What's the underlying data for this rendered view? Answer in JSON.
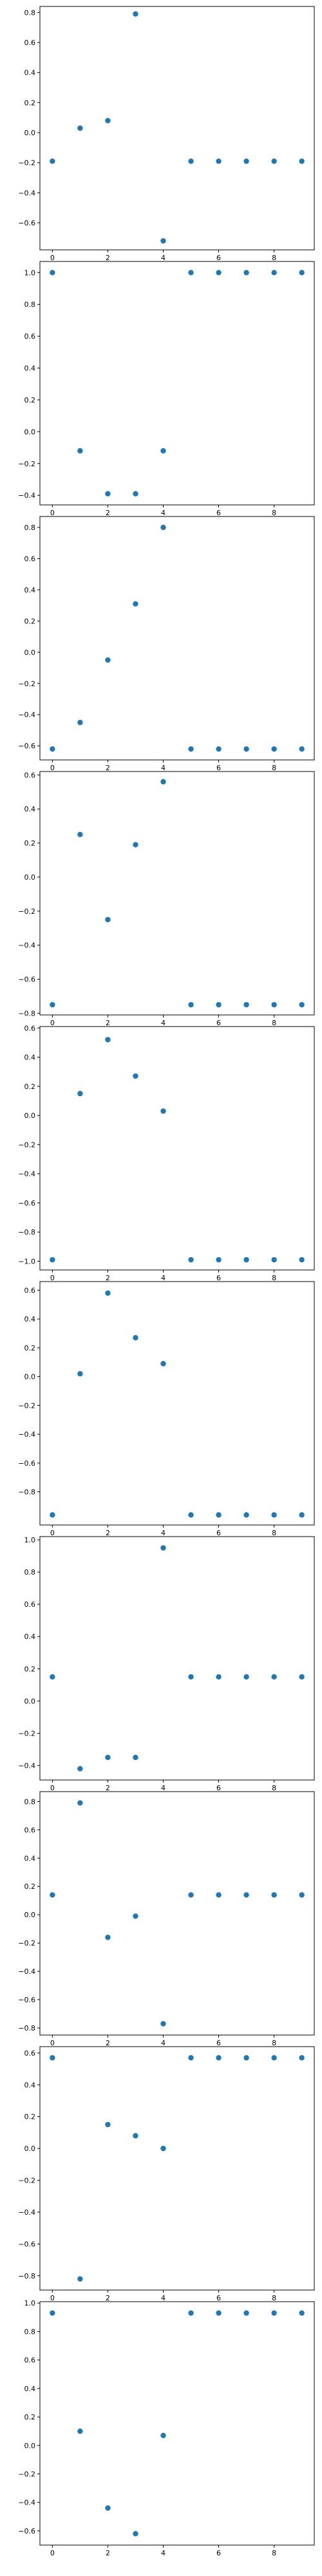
{
  "colors": {
    "marker": "#1f77b4",
    "axes": "#000000",
    "background": "#ffffff"
  },
  "chart_data": [
    {
      "type": "scatter",
      "grid": false,
      "x": [
        0,
        1,
        2,
        3,
        4,
        5,
        6,
        7,
        8,
        9
      ],
      "y": [
        -0.19,
        0.03,
        0.08,
        0.79,
        -0.72,
        -0.19,
        -0.19,
        -0.19,
        -0.19,
        -0.19
      ],
      "ylim": [
        -0.78,
        0.84
      ],
      "xlim": [
        -0.45,
        9.45
      ],
      "yticks": [
        -0.6,
        -0.4,
        -0.2,
        0.0,
        0.2,
        0.4,
        0.6,
        0.8
      ],
      "ytick_labels": [
        "−0.6",
        "−0.4",
        "−0.2",
        "0.0",
        "0.2",
        "0.4",
        "0.6",
        "0.8"
      ],
      "xticks": [
        0,
        2,
        4,
        6,
        8
      ],
      "xtick_labels": [
        "0",
        "2",
        "4",
        "6",
        "8"
      ]
    },
    {
      "type": "scatter",
      "grid": false,
      "x": [
        0,
        1,
        2,
        3,
        4,
        5,
        6,
        7,
        8,
        9
      ],
      "y": [
        1.0,
        -0.12,
        -0.39,
        -0.39,
        -0.12,
        1.0,
        1.0,
        1.0,
        1.0,
        1.0
      ],
      "ylim": [
        -0.46,
        1.07
      ],
      "xlim": [
        -0.45,
        9.45
      ],
      "yticks": [
        -0.4,
        -0.2,
        0.0,
        0.2,
        0.4,
        0.6,
        0.8,
        1.0
      ],
      "ytick_labels": [
        "−0.4",
        "−0.2",
        "0.0",
        "0.2",
        "0.4",
        "0.6",
        "0.8",
        "1.0"
      ],
      "xticks": [
        0,
        2,
        4,
        6,
        8
      ],
      "xtick_labels": [
        "0",
        "2",
        "4",
        "6",
        "8"
      ]
    },
    {
      "type": "scatter",
      "grid": false,
      "x": [
        0,
        1,
        2,
        3,
        4,
        5,
        6,
        7,
        8,
        9
      ],
      "y": [
        -0.62,
        -0.45,
        -0.05,
        0.31,
        0.8,
        -0.62,
        -0.62,
        -0.62,
        -0.62,
        -0.62
      ],
      "ylim": [
        -0.69,
        0.87
      ],
      "xlim": [
        -0.45,
        9.45
      ],
      "yticks": [
        -0.6,
        -0.4,
        -0.2,
        0.0,
        0.2,
        0.4,
        0.6,
        0.8
      ],
      "ytick_labels": [
        "−0.6",
        "−0.4",
        "−0.2",
        "0.0",
        "0.2",
        "0.4",
        "0.6",
        "0.8"
      ],
      "xticks": [
        0,
        2,
        4,
        6,
        8
      ],
      "xtick_labels": [
        "0",
        "2",
        "4",
        "6",
        "8"
      ]
    },
    {
      "type": "scatter",
      "grid": false,
      "x": [
        0,
        1,
        2,
        3,
        4,
        5,
        6,
        7,
        8,
        9
      ],
      "y": [
        -0.75,
        0.25,
        -0.25,
        0.19,
        0.56,
        -0.75,
        -0.75,
        -0.75,
        -0.75,
        -0.75
      ],
      "ylim": [
        -0.81,
        0.62
      ],
      "xlim": [
        -0.45,
        9.45
      ],
      "yticks": [
        -0.8,
        -0.6,
        -0.4,
        -0.2,
        0.0,
        0.2,
        0.4,
        0.6
      ],
      "ytick_labels": [
        "−0.8",
        "−0.6",
        "−0.4",
        "−0.2",
        "0.0",
        "0.2",
        "0.4",
        "0.6"
      ],
      "xticks": [
        0,
        2,
        4,
        6,
        8
      ],
      "xtick_labels": [
        "0",
        "2",
        "4",
        "6",
        "8"
      ]
    },
    {
      "type": "scatter",
      "grid": false,
      "x": [
        0,
        1,
        2,
        3,
        4,
        5,
        6,
        7,
        8,
        9
      ],
      "y": [
        -0.99,
        0.15,
        0.52,
        0.27,
        0.03,
        -0.99,
        -0.99,
        -0.99,
        -0.99,
        -0.99
      ],
      "ylim": [
        -1.06,
        0.61
      ],
      "xlim": [
        -0.45,
        9.45
      ],
      "yticks": [
        -1.0,
        -0.8,
        -0.6,
        -0.4,
        -0.2,
        0.0,
        0.2,
        0.4,
        0.6
      ],
      "ytick_labels": [
        "−1.0",
        "−0.8",
        "−0.6",
        "−0.4",
        "−0.2",
        "0.0",
        "0.2",
        "0.4",
        "0.6"
      ],
      "xticks": [
        0,
        2,
        4,
        6,
        8
      ],
      "xtick_labels": [
        "0",
        "2",
        "4",
        "6",
        "8"
      ]
    },
    {
      "type": "scatter",
      "grid": false,
      "x": [
        0,
        1,
        2,
        3,
        4,
        5,
        6,
        7,
        8,
        9
      ],
      "y": [
        -0.96,
        0.02,
        0.58,
        0.27,
        0.09,
        -0.96,
        -0.96,
        -0.96,
        -0.96,
        -0.96
      ],
      "ylim": [
        -1.03,
        0.66
      ],
      "xlim": [
        -0.45,
        9.45
      ],
      "yticks": [
        -0.8,
        -0.6,
        -0.4,
        -0.2,
        0.0,
        0.2,
        0.4,
        0.6
      ],
      "ytick_labels": [
        "−0.8",
        "−0.6",
        "−0.4",
        "−0.2",
        "0.0",
        "0.2",
        "0.4",
        "0.6"
      ],
      "xticks": [
        0,
        2,
        4,
        6,
        8
      ],
      "xtick_labels": [
        "0",
        "2",
        "4",
        "6",
        "8"
      ]
    },
    {
      "type": "scatter",
      "grid": false,
      "x": [
        0,
        1,
        2,
        3,
        4,
        5,
        6,
        7,
        8,
        9
      ],
      "y": [
        0.15,
        -0.42,
        -0.35,
        -0.35,
        0.95,
        0.15,
        0.15,
        0.15,
        0.15,
        0.15
      ],
      "ylim": [
        -0.49,
        1.02
      ],
      "xlim": [
        -0.45,
        9.45
      ],
      "yticks": [
        -0.4,
        -0.2,
        0.0,
        0.2,
        0.4,
        0.6,
        0.8,
        1.0
      ],
      "ytick_labels": [
        "−0.4",
        "−0.2",
        "0.0",
        "0.2",
        "0.4",
        "0.6",
        "0.8",
        "1.0"
      ],
      "xticks": [
        0,
        2,
        4,
        6,
        8
      ],
      "xtick_labels": [
        "0",
        "2",
        "4",
        "6",
        "8"
      ]
    },
    {
      "type": "scatter",
      "grid": false,
      "x": [
        0,
        1,
        2,
        3,
        4,
        5,
        6,
        7,
        8,
        9
      ],
      "y": [
        0.14,
        0.79,
        -0.16,
        -0.01,
        -0.77,
        0.14,
        0.14,
        0.14,
        0.14,
        0.14
      ],
      "ylim": [
        -0.85,
        0.87
      ],
      "xlim": [
        -0.45,
        9.45
      ],
      "yticks": [
        -0.8,
        -0.6,
        -0.4,
        -0.2,
        0.0,
        0.2,
        0.4,
        0.6,
        0.8
      ],
      "ytick_labels": [
        "−0.8",
        "−0.6",
        "−0.4",
        "−0.2",
        "0.0",
        "0.2",
        "0.4",
        "0.6",
        "0.8"
      ],
      "xticks": [
        0,
        2,
        4,
        6,
        8
      ],
      "xtick_labels": [
        "0",
        "2",
        "4",
        "6",
        "8"
      ]
    },
    {
      "type": "scatter",
      "grid": false,
      "x": [
        0,
        1,
        2,
        3,
        4,
        5,
        6,
        7,
        8,
        9
      ],
      "y": [
        0.57,
        -0.82,
        0.15,
        0.08,
        0.0,
        0.57,
        0.57,
        0.57,
        0.57,
        0.57
      ],
      "ylim": [
        -0.89,
        0.64
      ],
      "xlim": [
        -0.45,
        9.45
      ],
      "yticks": [
        -0.8,
        -0.6,
        -0.4,
        -0.2,
        0.0,
        0.2,
        0.4,
        0.6
      ],
      "ytick_labels": [
        "−0.8",
        "−0.6",
        "−0.4",
        "−0.2",
        "0.0",
        "0.2",
        "0.4",
        "0.6"
      ],
      "xticks": [
        0,
        2,
        4,
        6,
        8
      ],
      "xtick_labels": [
        "0",
        "2",
        "4",
        "6",
        "8"
      ]
    },
    {
      "type": "scatter",
      "grid": false,
      "x": [
        0,
        1,
        2,
        3,
        4,
        5,
        6,
        7,
        8,
        9
      ],
      "y": [
        0.93,
        0.1,
        -0.44,
        -0.62,
        0.07,
        0.93,
        0.93,
        0.93,
        0.93,
        0.93
      ],
      "ylim": [
        -0.7,
        1.01
      ],
      "xlim": [
        -0.45,
        9.45
      ],
      "yticks": [
        -0.6,
        -0.4,
        -0.2,
        0.0,
        0.2,
        0.4,
        0.6,
        0.8,
        1.0
      ],
      "ytick_labels": [
        "−0.6",
        "−0.4",
        "−0.2",
        "0.0",
        "0.2",
        "0.4",
        "0.6",
        "0.8",
        "1.0"
      ],
      "xticks": [
        0,
        2,
        4,
        6,
        8
      ],
      "xtick_labels": [
        "0",
        "2",
        "4",
        "6",
        "8"
      ]
    }
  ]
}
